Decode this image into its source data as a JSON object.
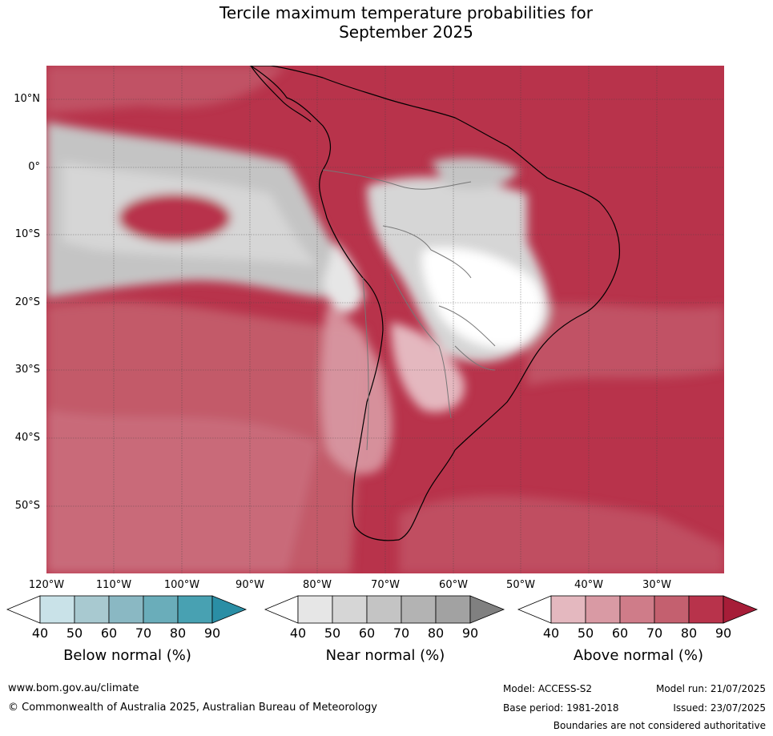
{
  "title_line1": "Tercile maximum temperature probabilities for",
  "title_line2": "September 2025",
  "lat_labels": [
    "10°N",
    "0°",
    "10°S",
    "20°S",
    "30°S",
    "40°S",
    "50°S"
  ],
  "lon_labels": [
    "120°W",
    "110°W",
    "100°W",
    "90°W",
    "80°W",
    "70°W",
    "60°W",
    "50°W",
    "40°W",
    "30°W"
  ],
  "colorbars": [
    {
      "title": "Below normal (%)",
      "ticks": [
        "40",
        "50",
        "60",
        "70",
        "80",
        "90"
      ],
      "colors": [
        "#ffffff",
        "#c9e2e8",
        "#a8c9d0",
        "#8ab8c3",
        "#6aadba",
        "#48a1b2",
        "#2a8ea5"
      ]
    },
    {
      "title": "Near normal (%)",
      "ticks": [
        "40",
        "50",
        "60",
        "70",
        "80",
        "90"
      ],
      "colors": [
        "#ffffff",
        "#e6e6e6",
        "#d6d6d6",
        "#c4c4c4",
        "#b3b3b3",
        "#a2a2a2",
        "#808080"
      ]
    },
    {
      "title": "Above normal (%)",
      "ticks": [
        "40",
        "50",
        "60",
        "70",
        "80",
        "90"
      ],
      "colors": [
        "#ffffff",
        "#e4b8bf",
        "#d99aa4",
        "#cf7c89",
        "#c4606f",
        "#b8334b",
        "#a61d38"
      ]
    }
  ],
  "footer": {
    "url": "www.bom.gov.au/climate",
    "copyright": "© Commonwealth of Australia 2025, Australian Bureau of Meteorology",
    "model": "Model: ACCESS-S2",
    "base_period": "Base period: 1981-2018",
    "model_run": "Model run: 21/07/2025",
    "issued": "Issued: 23/07/2025",
    "disclaimer": "Boundaries are not considered authoritative"
  }
}
